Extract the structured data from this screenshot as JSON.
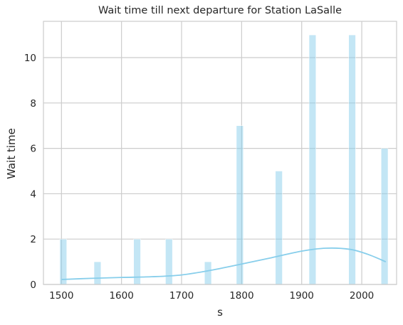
{
  "chart_data": {
    "type": "bar",
    "title": "Wait time till next departure for Station LaSalle",
    "xlabel": "s",
    "ylabel": "Wait time",
    "xlim": [
      1470,
      2058
    ],
    "ylim": [
      0,
      11.6
    ],
    "x_ticks": [
      1500,
      1600,
      1700,
      1800,
      1900,
      2000
    ],
    "y_ticks": [
      0,
      2,
      4,
      6,
      8,
      10
    ],
    "grid": true,
    "bar_width": 11.5,
    "bars": [
      {
        "x": 1503,
        "value": 2
      },
      {
        "x": 1560,
        "value": 1
      },
      {
        "x": 1626,
        "value": 2
      },
      {
        "x": 1679,
        "value": 2
      },
      {
        "x": 1744,
        "value": 1
      },
      {
        "x": 1797,
        "value": 7
      },
      {
        "x": 1862,
        "value": 5
      },
      {
        "x": 1918,
        "value": 11
      },
      {
        "x": 1984,
        "value": 11
      },
      {
        "x": 2038,
        "value": 6
      }
    ],
    "kde": {
      "x": [
        1500,
        1550,
        1600,
        1650,
        1700,
        1750,
        1800,
        1850,
        1900,
        1940,
        1980,
        2010,
        2040
      ],
      "y": [
        0.22,
        0.27,
        0.31,
        0.34,
        0.42,
        0.63,
        0.9,
        1.18,
        1.47,
        1.6,
        1.55,
        1.33,
        1.0
      ]
    },
    "colors": {
      "bar": "#87ceeb",
      "bar_opacity": 0.5,
      "kde_line": "#87ceeb",
      "grid": "#cccccc",
      "spine": "#cccccc",
      "text": "#262626"
    }
  }
}
